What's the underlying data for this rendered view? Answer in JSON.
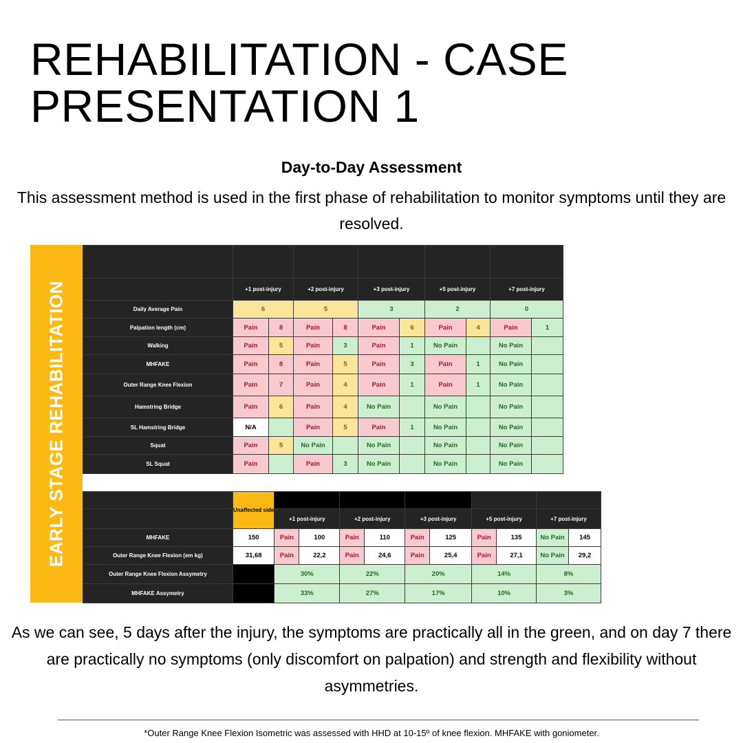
{
  "title": "REHABILITATION - CASE PRESENTATION 1",
  "subtitle": "Day-to-Day Assessment",
  "intro": "This assessment method is used in the first phase of rehabilitation to monitor symptoms until they are resolved.",
  "figure": {
    "sidebar_label": "EARLY STAGE REHABILITATION",
    "table1": {
      "headers": [
        "+1 post-injury",
        "+2 post-injury",
        "+3 post-injury",
        "+5 post-injury",
        "+7 post-injury"
      ],
      "daily_pain": {
        "label": "Daily Average Pain",
        "values": [
          {
            "text": "6",
            "color": "yellow"
          },
          {
            "text": "5",
            "color": "yellow"
          },
          {
            "text": "3",
            "color": "green"
          },
          {
            "text": "2",
            "color": "green"
          },
          {
            "text": "0",
            "color": "green"
          }
        ]
      },
      "rows": [
        {
          "label": "Palpation length (cm)",
          "cells": [
            {
              "status": "Pain",
              "sc": "pink",
              "score": "8",
              "nc": "pink"
            },
            {
              "status": "Pain",
              "sc": "pink",
              "score": "8",
              "nc": "pink"
            },
            {
              "status": "Pain",
              "sc": "pink",
              "score": "6",
              "nc": "yellow"
            },
            {
              "status": "Pain",
              "sc": "pink",
              "score": "4",
              "nc": "yellow"
            },
            {
              "status": "Pain",
              "sc": "pink",
              "score": "1",
              "nc": "green"
            }
          ]
        },
        {
          "label": "Walking",
          "cells": [
            {
              "status": "Pain",
              "sc": "pink",
              "score": "5",
              "nc": "yellow"
            },
            {
              "status": "Pain",
              "sc": "pink",
              "score": "3",
              "nc": "green"
            },
            {
              "status": "Pain",
              "sc": "pink",
              "score": "1",
              "nc": "green"
            },
            {
              "status": "No Pain",
              "sc": "green",
              "score": "",
              "nc": "green"
            },
            {
              "status": "No Pain",
              "sc": "green",
              "score": "",
              "nc": "green"
            }
          ]
        },
        {
          "label": "MHFAKE",
          "cells": [
            {
              "status": "Pain",
              "sc": "pink",
              "score": "8",
              "nc": "pink"
            },
            {
              "status": "Pain",
              "sc": "pink",
              "score": "5",
              "nc": "yellow"
            },
            {
              "status": "Pain",
              "sc": "pink",
              "score": "3",
              "nc": "green"
            },
            {
              "status": "Pain",
              "sc": "pink",
              "score": "1",
              "nc": "green"
            },
            {
              "status": "No Pain",
              "sc": "green",
              "score": "",
              "nc": "green"
            }
          ]
        },
        {
          "label": "Outer Range Knee Flexion",
          "cells": [
            {
              "status": "Pain",
              "sc": "pink",
              "score": "7",
              "nc": "pink"
            },
            {
              "status": "Pain",
              "sc": "pink",
              "score": "4",
              "nc": "yellow"
            },
            {
              "status": "Pain",
              "sc": "pink",
              "score": "1",
              "nc": "green"
            },
            {
              "status": "Pain",
              "sc": "pink",
              "score": "1",
              "nc": "green"
            },
            {
              "status": "No Pain",
              "sc": "green",
              "score": "",
              "nc": "green"
            }
          ]
        },
        {
          "label": "Hamstring Bridge",
          "cells": [
            {
              "status": "Pain",
              "sc": "pink",
              "score": "6",
              "nc": "yellow"
            },
            {
              "status": "Pain",
              "sc": "pink",
              "score": "4",
              "nc": "yellow"
            },
            {
              "status": "No Pain",
              "sc": "green",
              "score": "",
              "nc": "green"
            },
            {
              "status": "No Pain",
              "sc": "green",
              "score": "",
              "nc": "green"
            },
            {
              "status": "No Pain",
              "sc": "green",
              "score": "",
              "nc": "green"
            }
          ]
        },
        {
          "label": "SL Hamstring Bridge",
          "cells": [
            {
              "status": "N/A",
              "sc": "white",
              "score": "",
              "nc": "green"
            },
            {
              "status": "Pain",
              "sc": "pink",
              "score": "5",
              "nc": "yellow"
            },
            {
              "status": "Pain",
              "sc": "pink",
              "score": "1",
              "nc": "green"
            },
            {
              "status": "No Pain",
              "sc": "green",
              "score": "",
              "nc": "green"
            },
            {
              "status": "No Pain",
              "sc": "green",
              "score": "",
              "nc": "green"
            }
          ]
        },
        {
          "label": "Squat",
          "cells": [
            {
              "status": "Pain",
              "sc": "pink",
              "score": "5",
              "nc": "yellow"
            },
            {
              "status": "No Pain",
              "sc": "green",
              "score": "",
              "nc": "green"
            },
            {
              "status": "No Pain",
              "sc": "green",
              "score": "",
              "nc": "green"
            },
            {
              "status": "No Pain",
              "sc": "green",
              "score": "",
              "nc": "green"
            },
            {
              "status": "No Pain",
              "sc": "green",
              "score": "",
              "nc": "green"
            }
          ]
        },
        {
          "label": "SL Squat",
          "cells": [
            {
              "status": "Pain",
              "sc": "pink",
              "score": "",
              "nc": "green"
            },
            {
              "status": "Pain",
              "sc": "pink",
              "score": "3",
              "nc": "green"
            },
            {
              "status": "No Pain",
              "sc": "green",
              "score": "",
              "nc": "green"
            },
            {
              "status": "No Pain",
              "sc": "green",
              "score": "",
              "nc": "green"
            },
            {
              "status": "No Pain",
              "sc": "green",
              "score": "",
              "nc": "green"
            }
          ]
        }
      ]
    },
    "table2": {
      "unaffected_header": "Unaffected side",
      "headers": [
        "+1 post-injury",
        "+2 post-injury",
        "+3 post-injury",
        "+5 post-injury",
        "+7 post-injury"
      ],
      "rows": [
        {
          "label": "MHFAKE",
          "unaffected": "150",
          "cells": [
            {
              "status": "Pain",
              "value": "100"
            },
            {
              "status": "Pain",
              "value": "110"
            },
            {
              "status": "Pain",
              "value": "125"
            },
            {
              "status": "Pain",
              "value": "135"
            },
            {
              "status": "No Pain",
              "value": "145"
            }
          ]
        },
        {
          "label": "Outer Range Knee Flexion (em kg)",
          "unaffected": "31,68",
          "cells": [
            {
              "status": "Pain",
              "value": "22,2"
            },
            {
              "status": "Pain",
              "value": "24,6"
            },
            {
              "status": "Pain",
              "value": "25,4"
            },
            {
              "status": "Pain",
              "value": "27,1"
            },
            {
              "status": "No Pain",
              "value": "29,2"
            }
          ]
        }
      ],
      "asym_rows": [
        {
          "label": "Outer Range Knee Flexion Assymetry",
          "values": [
            "30%",
            "22%",
            "20%",
            "14%",
            "8%"
          ]
        },
        {
          "label": "MHFAKE Assymetry",
          "values": [
            "33%",
            "27%",
            "17%",
            "10%",
            "3%"
          ]
        }
      ]
    }
  },
  "conclusion": "As we can see, 5 days after the injury, the symptoms are practically all in the green, and on day 7 there are practically no symptoms (only discomfort on palpation) and strength and flexibility without asymmetries.",
  "footnote": "*Outer Range Knee Flexion Isometric was assessed with HHD at 10-15º of knee flexion. MHFAKE with goniometer.",
  "colors": {
    "pink": "#f8c9cf",
    "yellow": "#fbe59a",
    "green": "#ccefcf",
    "sidebar": "#fdb913",
    "dark": "#242424"
  }
}
